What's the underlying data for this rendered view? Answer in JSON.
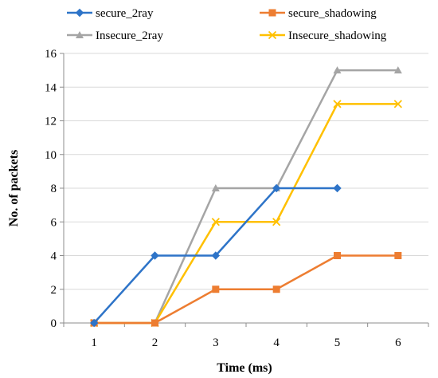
{
  "chart_data": {
    "type": "line",
    "xlabel": "Time (ms)",
    "ylabel": "No. of packets",
    "x": [
      1,
      2,
      3,
      4,
      5,
      6
    ],
    "xlim": [
      0.5,
      6.5
    ],
    "ylim": [
      0,
      16
    ],
    "yticks": [
      0,
      2,
      4,
      6,
      8,
      10,
      12,
      14,
      16
    ],
    "xticks": [
      1,
      2,
      3,
      4,
      5,
      6
    ],
    "grid": "horizontal",
    "legend_position": "top",
    "series": [
      {
        "name": "secure_2ray",
        "color": "#2e74c8",
        "marker": "diamond",
        "x": [
          1,
          2,
          3,
          4,
          5
        ],
        "values": [
          0,
          4,
          4,
          8,
          8
        ]
      },
      {
        "name": "secure_shadowing",
        "color": "#ed7d31",
        "marker": "square",
        "x": [
          1,
          2,
          3,
          4,
          5,
          6
        ],
        "values": [
          0,
          0,
          2,
          2,
          4,
          4
        ]
      },
      {
        "name": "Insecure_2ray",
        "color": "#a5a5a5",
        "marker": "triangle",
        "x": [
          1,
          2,
          3,
          4,
          5,
          6
        ],
        "values": [
          0,
          0,
          8,
          8,
          15,
          15
        ]
      },
      {
        "name": "Insecure_shadowing",
        "color": "#ffc000",
        "marker": "x",
        "x": [
          1,
          2,
          3,
          4,
          5,
          6
        ],
        "values": [
          0,
          0,
          6,
          6,
          13,
          13
        ]
      }
    ]
  }
}
